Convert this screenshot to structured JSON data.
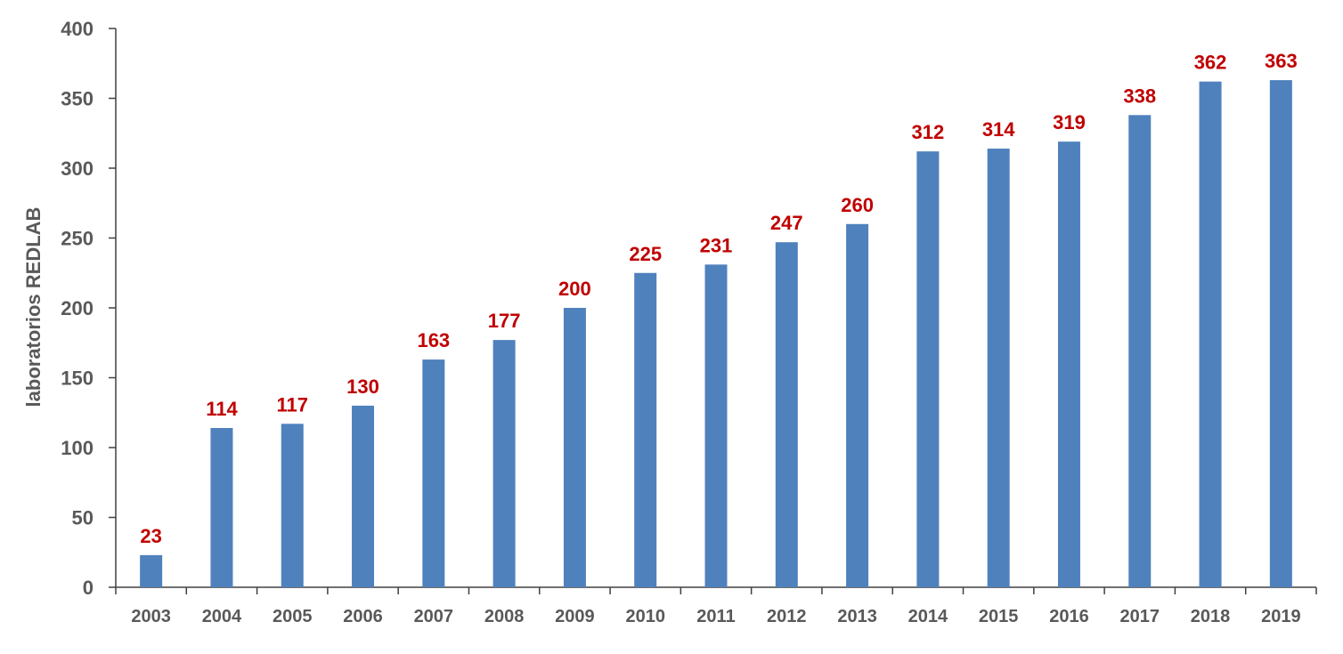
{
  "chart_data": {
    "type": "bar",
    "categories": [
      "2003",
      "2004",
      "2005",
      "2006",
      "2007",
      "2008",
      "2009",
      "2010",
      "2011",
      "2012",
      "2013",
      "2014",
      "2015",
      "2016",
      "2017",
      "2018",
      "2019"
    ],
    "values": [
      23,
      114,
      117,
      130,
      163,
      177,
      200,
      225,
      231,
      247,
      260,
      312,
      314,
      319,
      338,
      362,
      363
    ],
    "title": "",
    "xlabel": "",
    "ylabel": "laboratorios REDLAB",
    "ylim": [
      0,
      400
    ],
    "yticks": [
      0,
      50,
      100,
      150,
      200,
      250,
      300,
      350,
      400
    ],
    "grid": false,
    "legend": "none",
    "data_labels": true,
    "bar_color": "#4f81bd",
    "label_color": "#c00000",
    "axis_color": "#404040",
    "tick_text_color": "#595959"
  }
}
